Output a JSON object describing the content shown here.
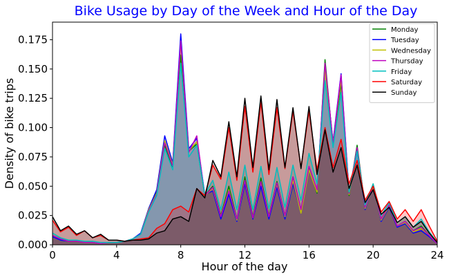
{
  "chart_data": {
    "type": "area",
    "title": "Bike Usage by Day of the Week and Hour of the Day",
    "xlabel": "Hour of the day",
    "ylabel": "Density of bike trips",
    "xlim": [
      0,
      24
    ],
    "ylim": [
      0,
      0.19
    ],
    "xticks": [
      0,
      4,
      8,
      12,
      16,
      20,
      24
    ],
    "xtick_labels": [
      "0",
      "4",
      "8",
      "12",
      "16",
      "20",
      "24"
    ],
    "yticks": [
      0.0,
      0.025,
      0.05,
      0.075,
      0.1,
      0.125,
      0.15,
      0.175
    ],
    "ytick_labels": [
      "0.000",
      "0.025",
      "0.050",
      "0.075",
      "0.100",
      "0.125",
      "0.150",
      "0.175"
    ],
    "grid": false,
    "legend_position": "top-right",
    "x": [
      0,
      0.5,
      1,
      1.5,
      2,
      2.5,
      3,
      3.5,
      4,
      4.5,
      5,
      5.5,
      6,
      6.5,
      7,
      7.5,
      8,
      8.5,
      9,
      9.5,
      10,
      10.5,
      11,
      11.5,
      12,
      12.5,
      13,
      13.5,
      14,
      14.5,
      15,
      15.5,
      16,
      16.5,
      17,
      17.5,
      18,
      18.5,
      19,
      19.5,
      20,
      20.5,
      21,
      21.5,
      22,
      22.5,
      23,
      23.5,
      24
    ],
    "series": [
      {
        "name": "Monday",
        "color": "#008000",
        "values": [
          0.008,
          0.005,
          0.003,
          0.003,
          0.002,
          0.002,
          0.001,
          0.002,
          0.002,
          0.003,
          0.005,
          0.009,
          0.03,
          0.045,
          0.085,
          0.066,
          0.162,
          0.08,
          0.086,
          0.042,
          0.05,
          0.025,
          0.05,
          0.022,
          0.058,
          0.024,
          0.057,
          0.025,
          0.054,
          0.025,
          0.058,
          0.03,
          0.066,
          0.044,
          0.158,
          0.085,
          0.138,
          0.042,
          0.085,
          0.032,
          0.052,
          0.022,
          0.034,
          0.016,
          0.02,
          0.012,
          0.016,
          0.008,
          0.001
        ]
      },
      {
        "name": "Tuesday",
        "color": "#0000ff",
        "values": [
          0.007,
          0.004,
          0.003,
          0.003,
          0.002,
          0.002,
          0.001,
          0.002,
          0.002,
          0.003,
          0.005,
          0.01,
          0.031,
          0.047,
          0.093,
          0.07,
          0.18,
          0.082,
          0.091,
          0.043,
          0.046,
          0.022,
          0.043,
          0.02,
          0.052,
          0.022,
          0.05,
          0.022,
          0.049,
          0.022,
          0.052,
          0.028,
          0.064,
          0.046,
          0.152,
          0.088,
          0.146,
          0.044,
          0.08,
          0.03,
          0.05,
          0.02,
          0.032,
          0.015,
          0.018,
          0.01,
          0.012,
          0.007,
          0.001
        ]
      },
      {
        "name": "Wednesday",
        "color": "#bfbf00",
        "values": [
          0.008,
          0.005,
          0.003,
          0.003,
          0.002,
          0.002,
          0.001,
          0.002,
          0.002,
          0.003,
          0.005,
          0.009,
          0.03,
          0.044,
          0.089,
          0.068,
          0.172,
          0.08,
          0.088,
          0.042,
          0.048,
          0.024,
          0.047,
          0.021,
          0.055,
          0.023,
          0.054,
          0.024,
          0.052,
          0.024,
          0.055,
          0.027,
          0.064,
          0.045,
          0.15,
          0.087,
          0.141,
          0.043,
          0.082,
          0.031,
          0.05,
          0.021,
          0.033,
          0.016,
          0.019,
          0.011,
          0.014,
          0.008,
          0.001
        ]
      },
      {
        "name": "Thursday",
        "color": "#bf00bf",
        "values": [
          0.008,
          0.005,
          0.003,
          0.003,
          0.002,
          0.002,
          0.001,
          0.002,
          0.002,
          0.003,
          0.005,
          0.009,
          0.029,
          0.043,
          0.087,
          0.067,
          0.174,
          0.079,
          0.093,
          0.042,
          0.049,
          0.024,
          0.046,
          0.022,
          0.055,
          0.023,
          0.054,
          0.024,
          0.053,
          0.025,
          0.058,
          0.03,
          0.067,
          0.047,
          0.155,
          0.086,
          0.145,
          0.044,
          0.083,
          0.032,
          0.051,
          0.022,
          0.034,
          0.016,
          0.02,
          0.012,
          0.015,
          0.008,
          0.001
        ]
      },
      {
        "name": "Friday",
        "color": "#00bfbf",
        "values": [
          0.01,
          0.006,
          0.004,
          0.004,
          0.003,
          0.003,
          0.002,
          0.002,
          0.002,
          0.003,
          0.005,
          0.009,
          0.028,
          0.042,
          0.082,
          0.064,
          0.155,
          0.075,
          0.085,
          0.043,
          0.055,
          0.03,
          0.062,
          0.03,
          0.068,
          0.03,
          0.067,
          0.031,
          0.066,
          0.032,
          0.068,
          0.038,
          0.078,
          0.052,
          0.14,
          0.083,
          0.13,
          0.045,
          0.08,
          0.034,
          0.052,
          0.025,
          0.036,
          0.019,
          0.024,
          0.015,
          0.022,
          0.011,
          0.002
        ]
      },
      {
        "name": "Saturday",
        "color": "#ff0000",
        "values": [
          0.021,
          0.011,
          0.015,
          0.008,
          0.012,
          0.006,
          0.008,
          0.004,
          0.004,
          0.003,
          0.004,
          0.005,
          0.006,
          0.014,
          0.018,
          0.03,
          0.033,
          0.028,
          0.048,
          0.042,
          0.068,
          0.056,
          0.1,
          0.055,
          0.118,
          0.062,
          0.122,
          0.06,
          0.117,
          0.065,
          0.114,
          0.066,
          0.114,
          0.064,
          0.1,
          0.066,
          0.09,
          0.052,
          0.072,
          0.038,
          0.05,
          0.028,
          0.037,
          0.022,
          0.03,
          0.02,
          0.03,
          0.016,
          0.003
        ]
      },
      {
        "name": "Sunday",
        "color": "#000000",
        "values": [
          0.024,
          0.012,
          0.016,
          0.009,
          0.012,
          0.006,
          0.009,
          0.004,
          0.004,
          0.003,
          0.004,
          0.004,
          0.005,
          0.01,
          0.012,
          0.022,
          0.024,
          0.02,
          0.048,
          0.04,
          0.072,
          0.058,
          0.105,
          0.058,
          0.125,
          0.066,
          0.127,
          0.064,
          0.124,
          0.066,
          0.117,
          0.065,
          0.118,
          0.06,
          0.098,
          0.062,
          0.083,
          0.048,
          0.068,
          0.036,
          0.047,
          0.026,
          0.032,
          0.019,
          0.024,
          0.015,
          0.02,
          0.01,
          0.002
        ]
      }
    ]
  }
}
